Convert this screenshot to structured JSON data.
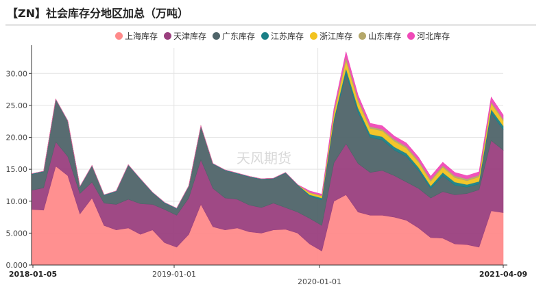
{
  "header": {
    "title": "【ZN】社会库存分地区加总（万吨）"
  },
  "watermark": "天风期货",
  "chart_data": {
    "type": "area",
    "stacked": true,
    "title": "【ZN】社会库存分地区加总（万吨）",
    "xlabel": "",
    "ylabel": "",
    "ylim": [
      0,
      34
    ],
    "yticks": [
      "0.000",
      "5.000",
      "10.00",
      "15.00",
      "20.00",
      "25.00",
      "30.00"
    ],
    "xticks": [
      {
        "label": "2018-01-05",
        "bold": true
      },
      {
        "label": "2019-01-01",
        "bold": false
      },
      {
        "label": "2020-01-01",
        "bold": false
      },
      {
        "label": "2021-04-09",
        "bold": true
      }
    ],
    "grid": true,
    "legend_position": "top",
    "x": [
      "2018-01",
      "2018-02",
      "2018-03",
      "2018-04",
      "2018-05",
      "2018-06",
      "2018-07",
      "2018-08",
      "2018-09",
      "2018-10",
      "2018-11",
      "2018-12",
      "2019-01",
      "2019-02",
      "2019-03",
      "2019-04",
      "2019-05",
      "2019-06",
      "2019-07",
      "2019-08",
      "2019-09",
      "2019-10",
      "2019-11",
      "2019-12",
      "2020-01",
      "2020-02",
      "2020-03",
      "2020-04",
      "2020-05",
      "2020-06",
      "2020-07",
      "2020-08",
      "2020-09",
      "2020-10",
      "2020-11",
      "2020-12",
      "2021-01",
      "2021-02",
      "2021-03",
      "2021-04"
    ],
    "series": [
      {
        "name": "上海库存",
        "color": "#ff8a8a",
        "values": [
          8.7,
          8.6,
          15.5,
          14.0,
          8.0,
          10.5,
          6.2,
          5.5,
          5.8,
          4.8,
          5.5,
          3.5,
          2.8,
          4.8,
          9.5,
          6.0,
          5.5,
          5.8,
          5.2,
          5.0,
          5.5,
          5.6,
          5.0,
          3.3,
          2.2,
          10.0,
          11.0,
          8.3,
          7.8,
          7.8,
          7.5,
          7.0,
          5.8,
          4.3,
          4.2,
          3.3,
          3.2,
          2.8,
          8.5,
          8.2
        ]
      },
      {
        "name": "天津库存",
        "color": "#9a3f7e",
        "values": [
          3.0,
          3.5,
          3.8,
          3.0,
          3.2,
          2.5,
          3.5,
          4.0,
          4.5,
          4.8,
          4.0,
          5.2,
          5.0,
          5.7,
          7.0,
          6.0,
          5.0,
          4.5,
          4.2,
          4.0,
          4.2,
          3.4,
          3.3,
          4.0,
          4.0,
          6.0,
          8.0,
          7.6,
          6.7,
          7.0,
          6.5,
          6.0,
          6.2,
          6.2,
          7.3,
          7.7,
          8.0,
          9.0,
          11.0,
          9.8
        ]
      },
      {
        "name": "广东库存",
        "color": "#4f6469",
        "values": [
          2.5,
          2.5,
          6.6,
          5.5,
          1.0,
          2.5,
          1.2,
          2.0,
          5.3,
          3.8,
          1.8,
          1.0,
          1.0,
          1.8,
          5.2,
          3.8,
          4.3,
          4.0,
          4.4,
          4.4,
          3.8,
          5.4,
          4.2,
          3.5,
          4.0,
          6.5,
          11.0,
          8.0,
          5.5,
          4.8,
          4.0,
          4.0,
          2.8,
          1.5,
          2.5,
          1.5,
          1.0,
          0.9,
          4.3,
          3.2
        ]
      },
      {
        "name": "江苏库存",
        "color": "#1a7f86",
        "values": [
          0.1,
          0.1,
          0.1,
          0.1,
          0.1,
          0.1,
          0.1,
          0.1,
          0.1,
          0.1,
          0.1,
          0.1,
          0.1,
          0.1,
          0.1,
          0.1,
          0.1,
          0.1,
          0.1,
          0.1,
          0.1,
          0.1,
          0.1,
          0.2,
          0.3,
          0.4,
          0.8,
          0.7,
          0.5,
          0.5,
          0.5,
          0.5,
          0.5,
          0.4,
          0.5,
          0.5,
          0.4,
          0.4,
          0.6,
          0.6
        ]
      },
      {
        "name": "浙江库存",
        "color": "#f2c320",
        "values": [
          0,
          0,
          0,
          0,
          0,
          0,
          0,
          0,
          0,
          0,
          0,
          0,
          0,
          0,
          0,
          0,
          0,
          0,
          0,
          0,
          0,
          0,
          0,
          0.3,
          0.3,
          0.8,
          1.2,
          1.0,
          0.9,
          0.9,
          0.9,
          0.8,
          0.8,
          0.7,
          0.8,
          0.7,
          0.6,
          0.7,
          0.9,
          0.8
        ]
      },
      {
        "name": "山东库存",
        "color": "#b4a76a",
        "values": [
          0,
          0,
          0,
          0,
          0,
          0,
          0,
          0,
          0,
          0,
          0,
          0,
          0,
          0,
          0,
          0,
          0,
          0,
          0,
          0,
          0,
          0,
          0,
          0.1,
          0.1,
          0.3,
          0.6,
          0.4,
          0.3,
          0.3,
          0.3,
          0.3,
          0.3,
          0.3,
          0.3,
          0.3,
          0.3,
          0.3,
          0.3,
          0.3
        ]
      },
      {
        "name": "河北库存",
        "color": "#f04ab8",
        "values": [
          0,
          0,
          0,
          0,
          0,
          0,
          0,
          0,
          0,
          0,
          0,
          0,
          0,
          0,
          0,
          0,
          0,
          0,
          0,
          0,
          0,
          0,
          0,
          0.2,
          0.2,
          0.5,
          0.8,
          0.6,
          0.5,
          0.5,
          0.5,
          0.5,
          0.5,
          0.5,
          0.5,
          0.5,
          0.5,
          0.5,
          0.7,
          0.6
        ]
      }
    ]
  }
}
